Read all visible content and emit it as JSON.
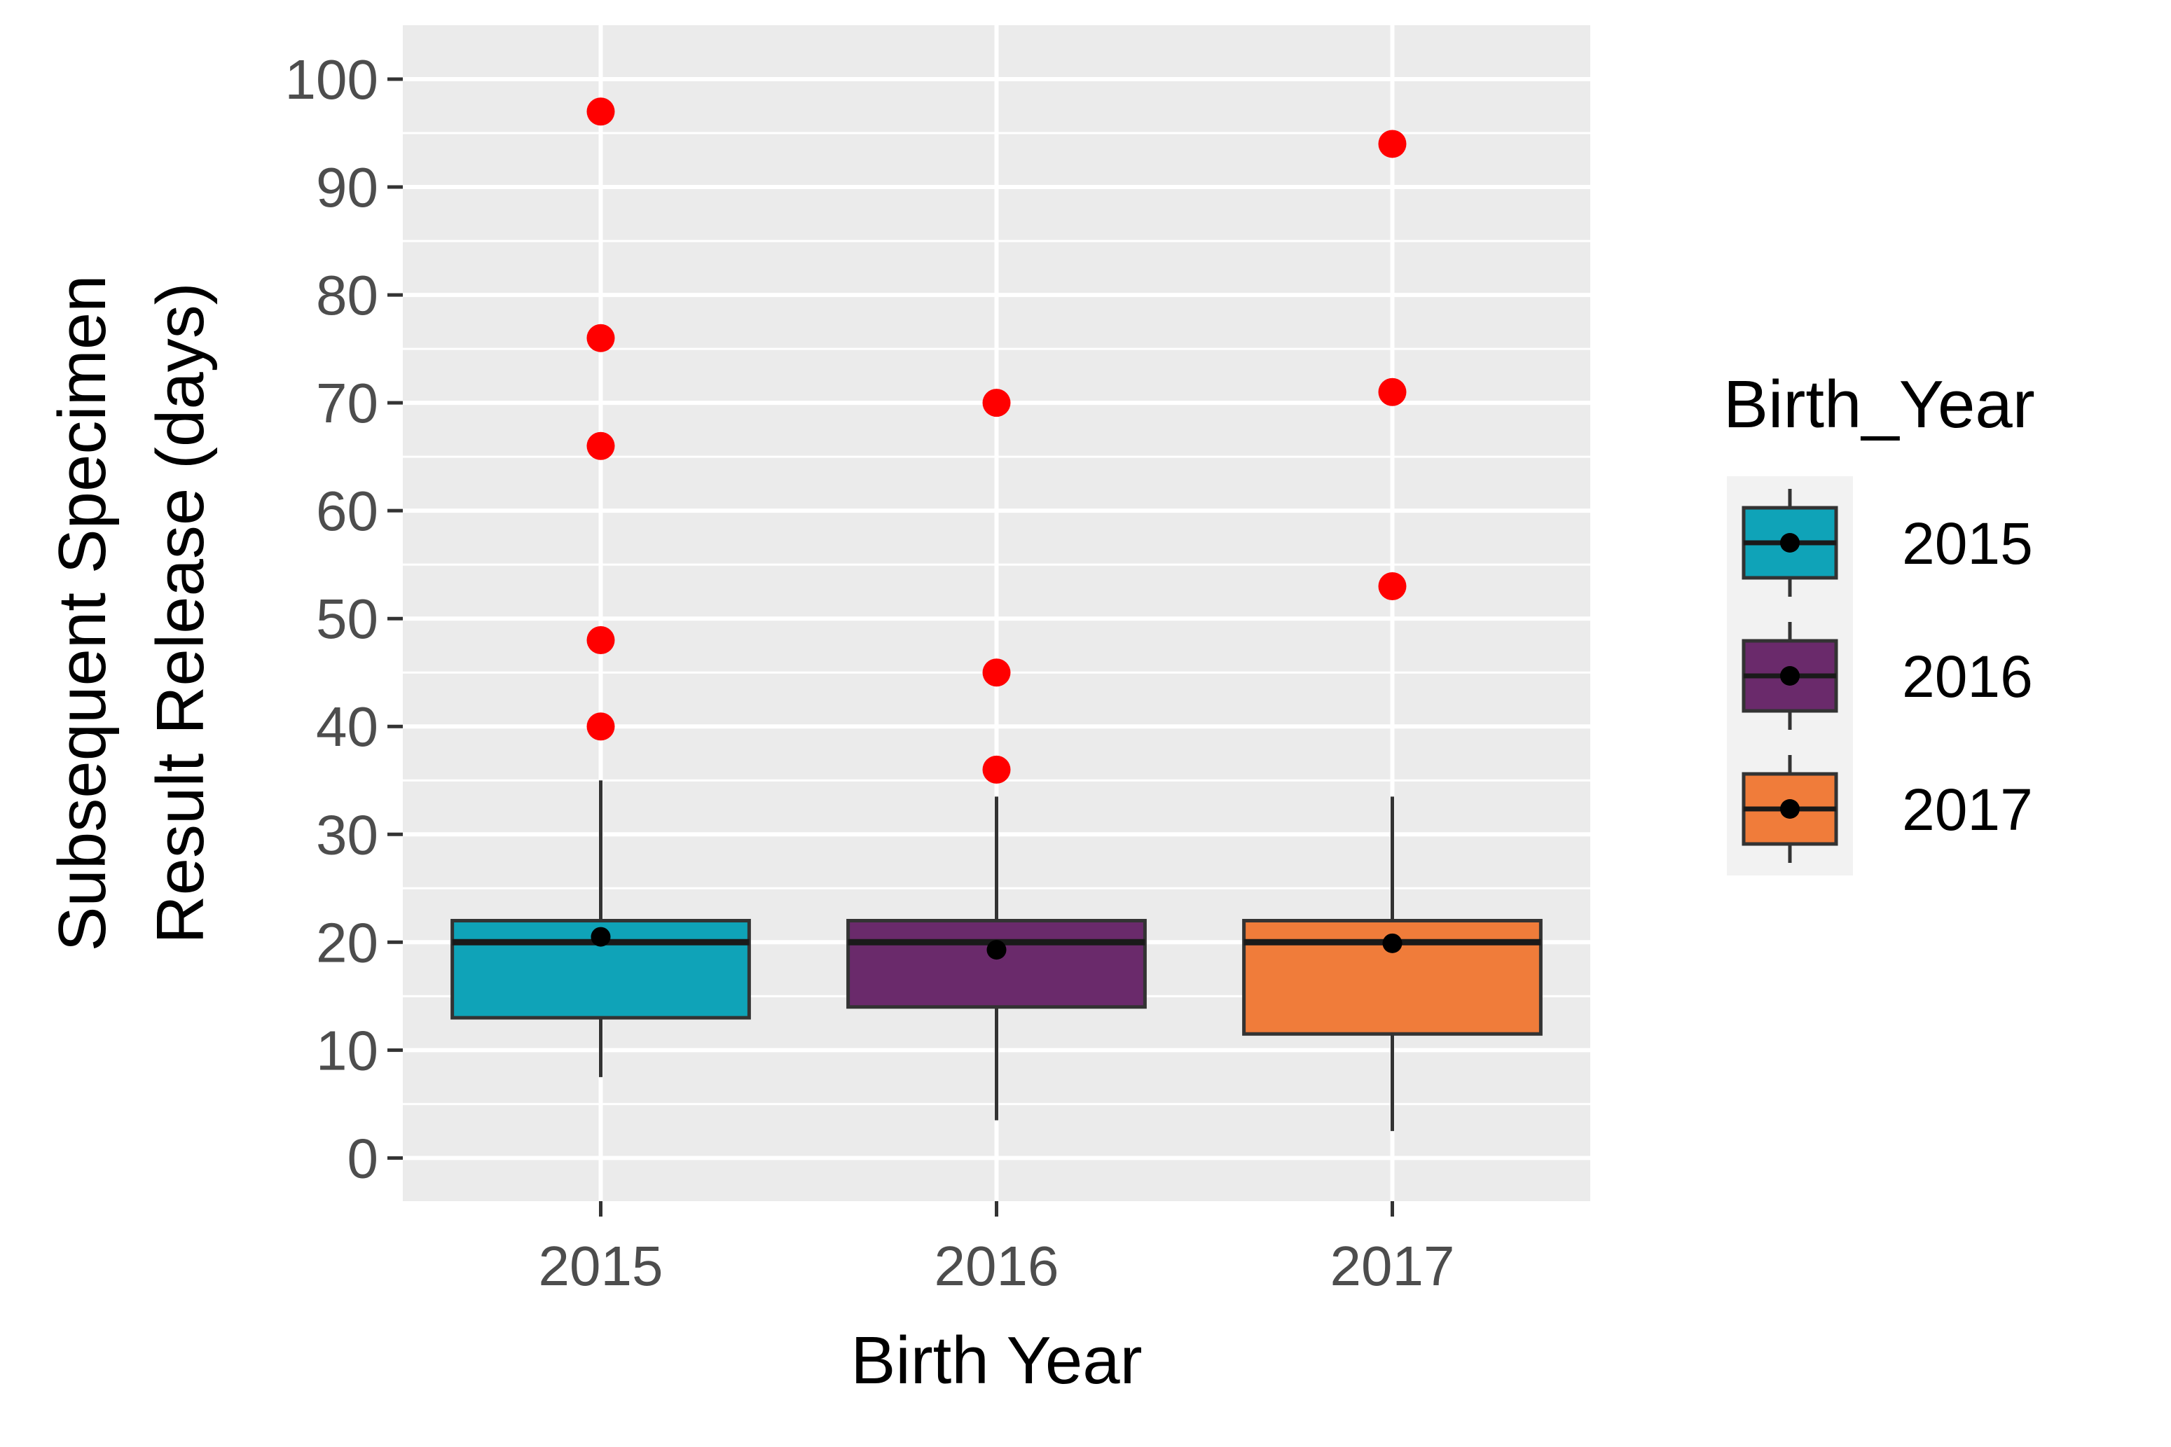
{
  "chart_data": {
    "type": "boxplot",
    "xlabel": "Birth Year",
    "ylabel_lines": [
      "Subsequent Specimen",
      "Result Release (days)"
    ],
    "categories": [
      "2015",
      "2016",
      "2017"
    ],
    "ylim": [
      -4,
      105
    ],
    "yticks": [
      0,
      10,
      20,
      30,
      40,
      50,
      60,
      70,
      80,
      90,
      100
    ],
    "grid": true,
    "legend": {
      "title": "Birth_Year",
      "placement": "right",
      "entries": [
        "2015",
        "2016",
        "2017"
      ]
    },
    "series": [
      {
        "category": "2015",
        "color": "#0FA3B8",
        "whisker_low": 7.5,
        "q1": 13,
        "median": 20,
        "q3": 22,
        "whisker_high": 35,
        "mean": 20.5,
        "outliers": [
          40,
          48,
          66,
          76,
          97
        ]
      },
      {
        "category": "2016",
        "color": "#6A2A6B",
        "whisker_low": 3.5,
        "q1": 14,
        "median": 20,
        "q3": 22,
        "whisker_high": 33.5,
        "mean": 19.3,
        "outliers": [
          36,
          45,
          70
        ]
      },
      {
        "category": "2017",
        "color": "#F07C3A",
        "whisker_low": 2.5,
        "q1": 11.5,
        "median": 20,
        "q3": 22,
        "whisker_high": 33.5,
        "mean": 19.9,
        "outliers": [
          53,
          71,
          94
        ]
      }
    ],
    "outlier_color": "#FF0000",
    "mean_marker_color": "#000000",
    "panel_color": "#EBEBEB",
    "grid_color": "#FFFFFF",
    "box_border_color": "#333333"
  }
}
